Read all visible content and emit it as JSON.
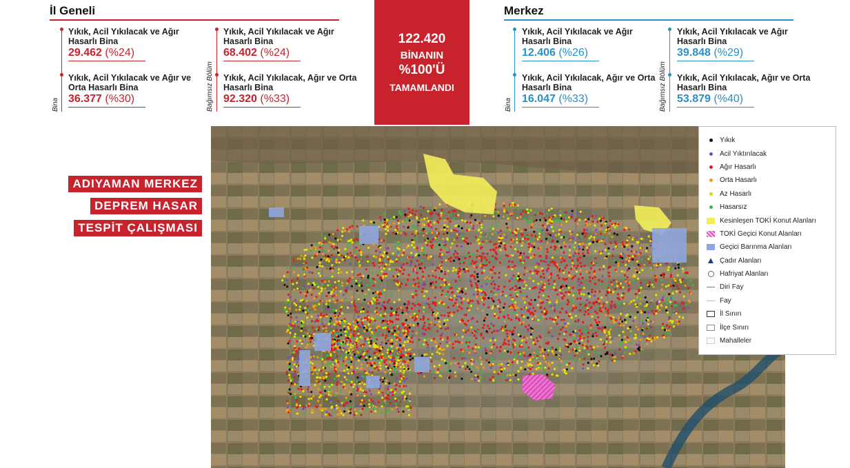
{
  "il_geneli": {
    "title": "İl Geneli",
    "bina_label": "Bina",
    "bagimsiz_label": "Bağımsız Bölüm",
    "bina": [
      {
        "label": "Yıkık, Acil Yıkılacak ve Ağır Hasarlı Bina",
        "value": "29.462",
        "pct": "(%24)"
      },
      {
        "label": "Yıkık, Acil Yıkılacak ve Ağır ve Orta Hasarlı Bina",
        "value": "36.377",
        "pct": "(%30)"
      }
    ],
    "bagimsiz": [
      {
        "label": "Yıkık, Acil Yıkılacak ve Ağır Hasarlı Bina",
        "value": "68.402",
        "pct": "(%24)"
      },
      {
        "label": "Yıkık, Acil Yıkılacak, Ağır ve Orta Hasarlı Bina",
        "value": "92.320",
        "pct": "(%33)"
      }
    ]
  },
  "merkez": {
    "title": "Merkez",
    "bina_label": "Bina",
    "bagimsiz_label": "Bağımsız Bölüm",
    "bina": [
      {
        "label": "Yıkık, Acil Yıkılacak ve Ağır Hasarlı Bina",
        "value": "12.406",
        "pct": "(%26)"
      },
      {
        "label": "Yıkık, Acil Yıkılacak, Ağır ve Orta Hasarlı Bina",
        "value": "16.047",
        "pct": "(%33)"
      }
    ],
    "bagimsiz": [
      {
        "label": "Yıkık, Acil Yıkılacak ve Ağır Hasarlı Bina",
        "value": "39.848",
        "pct": "(%29)"
      },
      {
        "label": "Yıkık, Acil Yıkılacak, Ağır ve Orta Hasarlı Bina",
        "value": "53.879",
        "pct": "(%40)"
      }
    ]
  },
  "center": {
    "count": "122.420",
    "line2": "BİNANIN",
    "line3": "%100'Ü",
    "line4": "TAMAMLANDI"
  },
  "banner": [
    "ADIYAMAN MERKEZ",
    "DEPREM HASAR",
    "TESPİT ÇALIŞMASI"
  ],
  "colors": {
    "accent_red": "#c8232c",
    "accent_blue": "#2a8fc4",
    "yikik": "#111111",
    "acil": "#7b4bb8",
    "agir": "#e31a1c",
    "orta": "#f39c12",
    "az": "#e6e600",
    "hasarsiz": "#3cb44b"
  },
  "legend": [
    {
      "label": "Yıkık",
      "symbol": "dot",
      "color": "#111111"
    },
    {
      "label": "Acil Yıktırılacak",
      "symbol": "dot",
      "color": "#7b4bb8"
    },
    {
      "label": "Ağır Hasarlı",
      "symbol": "dot",
      "color": "#e31a1c"
    },
    {
      "label": "Orta Hasarlı",
      "symbol": "dot",
      "color": "#f39c12"
    },
    {
      "label": "Az Hasarlı",
      "symbol": "dot",
      "color": "#d9d900"
    },
    {
      "label": "Hasarsız",
      "symbol": "dot",
      "color": "#3cb44b"
    },
    {
      "label": "Kesinleşen TOKİ Konut Alanları",
      "symbol": "fill",
      "color": "#f2ee5a"
    },
    {
      "label": "TOKİ Geçici Konut Alanları",
      "symbol": "hatch",
      "color": "#e54fc4"
    },
    {
      "label": "Geçici Barınma Alanları",
      "symbol": "fill",
      "color": "#8fa6df"
    },
    {
      "label": "Çadır Alanları",
      "symbol": "tent-icon",
      "color": "#1f3d8a"
    },
    {
      "label": "Hafriyat Alanları",
      "symbol": "excavation-icon",
      "color": "#666666"
    },
    {
      "label": "Diri Fay",
      "symbol": "line",
      "color": "#777777"
    },
    {
      "label": "Fay",
      "symbol": "line",
      "color": "#bbbbbb"
    },
    {
      "label": "İl Sınırı",
      "symbol": "box",
      "color": "#333333"
    },
    {
      "label": "İlçe Sınırı",
      "symbol": "box",
      "color": "#888888"
    },
    {
      "label": "Mahalleler",
      "symbol": "box",
      "color": "#cccccc"
    }
  ]
}
